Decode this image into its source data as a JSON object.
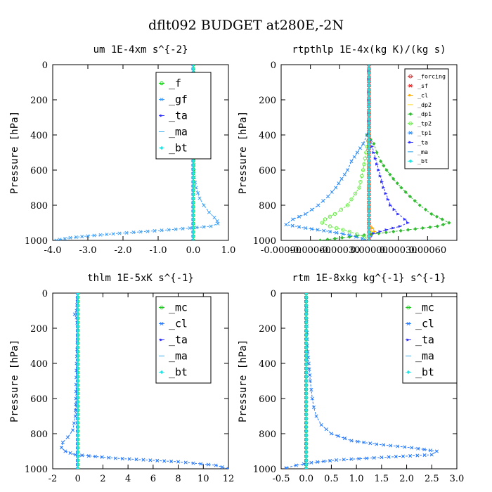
{
  "figure_title": "dflt092  BUDGET at280E,-2N",
  "colors": {
    "f": "#00dd00",
    "gf": "#3aa0ff",
    "ta": "#3333ff",
    "ma": "#33aaee",
    "bt": "#22e6e6",
    "mc": "#22cc22",
    "cl": "#2277ff",
    "forcing": "#cc3333",
    "sf": "#ee1111",
    "cl_rt": "#ffaa00",
    "dp2": "#ffdd33",
    "dp1": "#33bb33",
    "tp2": "#66ee44",
    "tp1": "#2288ff"
  },
  "chart_data": [
    {
      "type": "line",
      "title": "um  1E-4xm s^{-2}",
      "ylabel": "Pressure [hPa]",
      "xlim": [
        -4.0,
        1.0
      ],
      "ylim": [
        1000,
        0
      ],
      "xticks": [
        -4.0,
        -3.0,
        -2.0,
        -1.0,
        0.0,
        1.0
      ],
      "xtick_labels": [
        "-4.0",
        "-3.0",
        "-2.0",
        "-1.0",
        "0.0",
        "1.0"
      ],
      "yticks": [
        0,
        200,
        400,
        600,
        800,
        1000
      ],
      "ytick_labels": [
        "0",
        "200",
        "400",
        "600",
        "800",
        "1000"
      ],
      "legend": {
        "position": "top-right",
        "font_scale": 1.35
      },
      "series": [
        {
          "name": "_f",
          "color": "f",
          "y": [
            0,
            1000
          ],
          "x": [
            0,
            0
          ]
        },
        {
          "name": "_gf",
          "color": "gf",
          "y": [
            0,
            100,
            140,
            160,
            180,
            200,
            300,
            500,
            640,
            700,
            760,
            800,
            840,
            870,
            890,
            905,
            920,
            940,
            960,
            975,
            985,
            995,
            1000
          ],
          "x": [
            0,
            0.02,
            0.06,
            0.08,
            0.06,
            0.02,
            0.01,
            0.01,
            0.03,
            0.08,
            0.18,
            0.3,
            0.45,
            0.6,
            0.68,
            0.7,
            0.5,
            -0.7,
            -2.1,
            -3.0,
            -3.5,
            -3.8,
            -3.9
          ]
        },
        {
          "name": "_ta",
          "color": "ta",
          "y": [
            0,
            1000
          ],
          "x": [
            0,
            0
          ]
        },
        {
          "name": "_ma",
          "color": "ma",
          "y": [
            0,
            1000
          ],
          "x": [
            0,
            0
          ]
        },
        {
          "name": "_bt",
          "color": "bt",
          "y": [
            0,
            1000
          ],
          "x": [
            0,
            0
          ]
        }
      ]
    },
    {
      "type": "line",
      "title": "rtpthlp  1E-4x(kg K)/(kg s)",
      "ylabel": "Pressure [hPa]",
      "xlim": [
        -0.0009,
        0.0009
      ],
      "ylim": [
        1000,
        0
      ],
      "xticks": [
        -0.0009,
        -0.0006,
        -0.0003,
        0.0,
        0.0003,
        0.0006
      ],
      "xtick_labels": [
        "-0.00090",
        "-0.00060",
        "-0.00030",
        "0.00000",
        "0.00030",
        "0.00060"
      ],
      "yticks": [
        0,
        200,
        400,
        600,
        800,
        1000
      ],
      "ytick_labels": [
        "0",
        "200",
        "400",
        "600",
        "800",
        "1000"
      ],
      "legend": {
        "position": "top-right",
        "font_scale": 0.75
      },
      "series": [
        {
          "name": "_forcing",
          "color": "forcing",
          "y": [
            0,
            1000
          ],
          "x": [
            0,
            0
          ]
        },
        {
          "name": "_sf",
          "color": "sf",
          "y": [
            0,
            1000
          ],
          "x": [
            0,
            0
          ]
        },
        {
          "name": "_cl",
          "color": "cl_rt",
          "y": [
            0,
            900,
            930,
            950,
            970,
            1000
          ],
          "x": [
            0,
            0,
            4e-05,
            6e-05,
            2e-05,
            0
          ]
        },
        {
          "name": "_dp2",
          "color": "dp2",
          "y": [
            0,
            920,
            950,
            1000
          ],
          "x": [
            0,
            0,
            3e-05,
            0
          ]
        },
        {
          "name": "_dp1",
          "color": "dp1",
          "y": [
            0,
            350,
            400,
            450,
            500,
            550,
            600,
            650,
            700,
            750,
            800,
            850,
            880,
            900,
            920,
            940,
            960,
            980,
            1000
          ],
          "x": [
            0,
            0,
            -2e-05,
            5e-05,
            8e-05,
            0.00012,
            0.00018,
            0.00025,
            0.00033,
            0.00042,
            0.00052,
            0.00064,
            0.00075,
            0.00082,
            0.0007,
            0.0004,
            0.0001,
            -0.0002,
            -0.0005
          ]
        },
        {
          "name": "_tp2",
          "color": "tp2",
          "y": [
            0,
            400,
            500,
            600,
            700,
            800,
            850,
            880,
            900,
            920,
            950,
            980,
            1000
          ],
          "x": [
            0,
            0,
            -3e-05,
            -6e-05,
            -0.0001,
            -0.00022,
            -0.00035,
            -0.00045,
            -0.00048,
            -0.0004,
            -0.0002,
            -5e-05,
            0
          ]
        },
        {
          "name": "_tp1",
          "color": "tp1",
          "y": [
            0,
            350,
            400,
            450,
            500,
            550,
            600,
            650,
            700,
            750,
            800,
            850,
            880,
            910,
            930,
            950,
            970,
            1000
          ],
          "x": [
            0,
            0,
            -2e-05,
            -6e-05,
            -0.00012,
            -0.00018,
            -0.00022,
            -0.00028,
            -0.00034,
            -0.00042,
            -0.00052,
            -0.00065,
            -0.00078,
            -0.00085,
            -0.00065,
            -0.0004,
            -0.0002,
            0
          ]
        },
        {
          "name": "_ta",
          "color": "ta",
          "y": [
            0,
            400,
            500,
            600,
            700,
            800,
            850,
            880,
            900,
            920,
            940,
            960,
            1000
          ],
          "x": [
            0,
            0,
            5e-05,
            0.0001,
            0.00015,
            0.00022,
            0.0003,
            0.00037,
            0.0004,
            0.00032,
            0.00018,
            5e-05,
            0
          ]
        },
        {
          "name": "_ma",
          "color": "ma",
          "y": [
            0,
            1000
          ],
          "x": [
            0,
            0
          ]
        },
        {
          "name": "_bt",
          "color": "bt",
          "y": [
            0,
            1000
          ],
          "x": [
            0,
            0
          ]
        }
      ]
    },
    {
      "type": "line",
      "title": "thlm  1E-5xK s^{-1}",
      "ylabel": "Pressure [hPa]",
      "xlim": [
        -2,
        12
      ],
      "ylim": [
        1000,
        0
      ],
      "xticks": [
        -2,
        0,
        2,
        4,
        6,
        8,
        10,
        12
      ],
      "xtick_labels": [
        "-2",
        "0",
        "2",
        "4",
        "6",
        "8",
        "10",
        "12"
      ],
      "yticks": [
        0,
        200,
        400,
        600,
        800,
        1000
      ],
      "ytick_labels": [
        "0",
        "200",
        "400",
        "600",
        "800",
        "1000"
      ],
      "legend": {
        "position": "top-right",
        "font_scale": 1.35
      },
      "series": [
        {
          "name": "_mc",
          "color": "mc",
          "y": [
            0,
            1000
          ],
          "x": [
            0,
            0
          ]
        },
        {
          "name": "_cl",
          "color": "cl",
          "y": [
            0,
            100,
            120,
            140,
            200,
            400,
            600,
            700,
            780,
            820,
            850,
            880,
            900,
            920,
            940,
            960,
            980,
            1000
          ],
          "x": [
            0,
            -0.1,
            -0.25,
            -0.1,
            0,
            -0.1,
            -0.15,
            -0.2,
            -0.4,
            -0.8,
            -1.2,
            -1.3,
            -1.0,
            -0.2,
            3.0,
            8.0,
            11.0,
            12.0
          ]
        },
        {
          "name": "_ta",
          "color": "ta",
          "y": [
            0,
            1000
          ],
          "x": [
            0,
            0
          ]
        },
        {
          "name": "_ma",
          "color": "ma",
          "y": [
            0,
            1000
          ],
          "x": [
            0,
            0
          ]
        },
        {
          "name": "_bt",
          "color": "bt",
          "y": [
            0,
            1000
          ],
          "x": [
            0,
            0
          ]
        }
      ]
    },
    {
      "type": "line",
      "title": "rtm  1E-8xkg kg^{-1} s^{-1}",
      "ylabel": "Pressure [hPa]",
      "xlim": [
        -0.5,
        3.0
      ],
      "ylim": [
        1000,
        0
      ],
      "xticks": [
        -0.5,
        0.0,
        0.5,
        1.0,
        1.5,
        2.0,
        2.5,
        3.0
      ],
      "xtick_labels": [
        "-0.5",
        "0.0",
        "0.5",
        "1.0",
        "1.5",
        "2.0",
        "2.5",
        "3.0"
      ],
      "yticks": [
        0,
        200,
        400,
        600,
        800,
        1000
      ],
      "ytick_labels": [
        "0",
        "200",
        "400",
        "600",
        "800",
        "1000"
      ],
      "legend": {
        "position": "top-right",
        "font_scale": 1.35
      },
      "series": [
        {
          "name": "_mc",
          "color": "mc",
          "y": [
            0,
            1000
          ],
          "x": [
            0,
            0
          ]
        },
        {
          "name": "_cl",
          "color": "cl",
          "y": [
            0,
            300,
            400,
            500,
            550,
            600,
            650,
            700,
            750,
            800,
            840,
            860,
            880,
            900,
            920,
            935,
            950,
            965,
            980,
            995,
            1000
          ],
          "x": [
            0,
            0.02,
            0.05,
            0.08,
            0.1,
            0.12,
            0.15,
            0.2,
            0.3,
            0.5,
            0.9,
            1.4,
            2.1,
            2.6,
            2.5,
            1.5,
            0.6,
            0.1,
            -0.2,
            -0.4,
            -0.4
          ]
        },
        {
          "name": "_ta",
          "color": "ta",
          "y": [
            0,
            1000
          ],
          "x": [
            0,
            0
          ]
        },
        {
          "name": "_ma",
          "color": "ma",
          "y": [
            0,
            1000
          ],
          "x": [
            0,
            0
          ]
        },
        {
          "name": "_bt",
          "color": "bt",
          "y": [
            0,
            1000
          ],
          "x": [
            0,
            0
          ]
        }
      ]
    }
  ]
}
